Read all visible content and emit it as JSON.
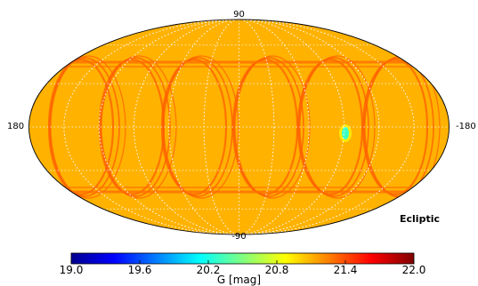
{
  "chart_data": {
    "type": "heatmap",
    "projection": "mollweide",
    "coordinate_system": "Ecliptic",
    "labels": {
      "top": "90",
      "bottom": "-90",
      "left": "180",
      "right": "-180"
    },
    "colormap": "jet",
    "colorbar": {
      "label": "G [mag]",
      "ticks": [
        "19.0",
        "19.6",
        "20.2",
        "20.8",
        "21.4",
        "22.0"
      ],
      "range": [
        19.0,
        22.0
      ]
    },
    "grid": true,
    "dominant_value": 21.1,
    "scan_lane_value": 21.35,
    "ecliptic_band_value": 21.3,
    "faint_patch_value": 20.3,
    "colors": {
      "background": "#ffffff",
      "outline": "#000000",
      "grid": "#ffffff"
    }
  }
}
